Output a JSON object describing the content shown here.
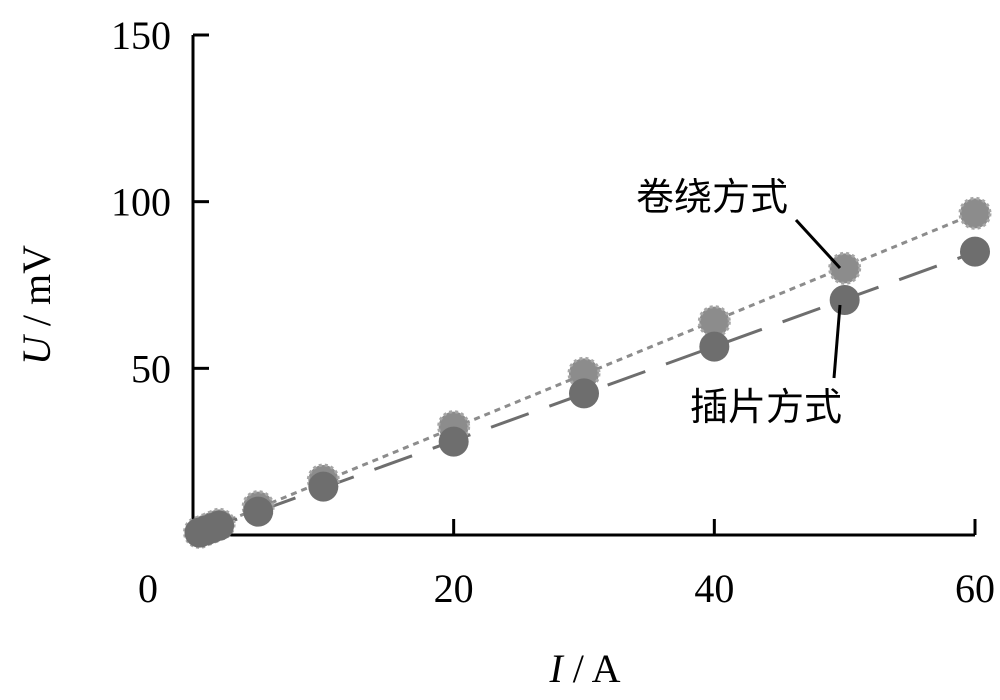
{
  "chart_data": {
    "type": "scatter",
    "xlabel": {
      "var": "I",
      "unit": "A"
    },
    "ylabel": {
      "var": "U",
      "unit": "mV"
    },
    "xlim": [
      0,
      60
    ],
    "ylim": [
      0,
      150
    ],
    "x_ticks": [
      "0",
      "20",
      "40",
      "60"
    ],
    "y_ticks": [
      "50",
      "100",
      "150"
    ],
    "series": [
      {
        "name": "卷绕方式",
        "color": "#8c8c8c",
        "marker_style": "dotted-outline",
        "line_style": "dotted",
        "points": [
          {
            "x": 0.5,
            "y": 0.8
          },
          {
            "x": 1.0,
            "y": 1.6
          },
          {
            "x": 1.5,
            "y": 2.4
          },
          {
            "x": 2.0,
            "y": 3.2
          },
          {
            "x": 5.0,
            "y": 8.5
          },
          {
            "x": 10.0,
            "y": 16.5
          },
          {
            "x": 20.0,
            "y": 32.5
          },
          {
            "x": 30.0,
            "y": 48.5
          },
          {
            "x": 40.0,
            "y": 64.0
          },
          {
            "x": 50.0,
            "y": 80.0
          },
          {
            "x": 60.0,
            "y": 96.5
          }
        ]
      },
      {
        "name": "插片方式",
        "color": "#6e6e6e",
        "marker_style": "solid",
        "line_style": "dashed",
        "points": [
          {
            "x": 0.5,
            "y": 0.7
          },
          {
            "x": 1.0,
            "y": 1.4
          },
          {
            "x": 1.5,
            "y": 2.1
          },
          {
            "x": 2.0,
            "y": 2.8
          },
          {
            "x": 5.0,
            "y": 7.0
          },
          {
            "x": 10.0,
            "y": 14.5
          },
          {
            "x": 20.0,
            "y": 28.0
          },
          {
            "x": 30.0,
            "y": 42.5
          },
          {
            "x": 40.0,
            "y": 56.5
          },
          {
            "x": 50.0,
            "y": 70.5
          },
          {
            "x": 60.0,
            "y": 85.0
          }
        ]
      }
    ],
    "annotations": [
      "卷绕方式",
      "插片方式"
    ]
  }
}
